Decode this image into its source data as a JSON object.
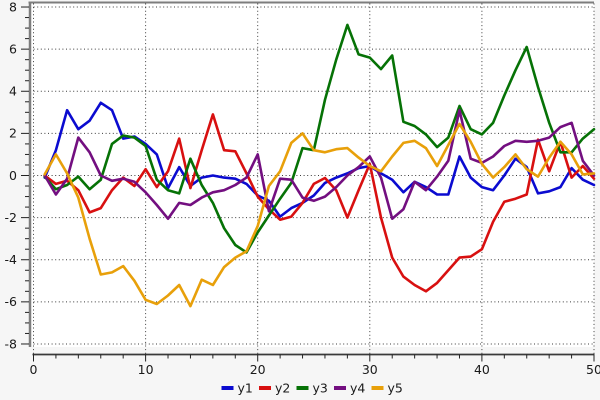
{
  "chart_data": {
    "type": "line",
    "title": "",
    "xlabel": "",
    "ylabel": "",
    "background": "#f6f6f6",
    "plot_background": "#ffffff",
    "grid": "dotted-on-major-ticks",
    "grid_color": "#3c3c3c",
    "frame_color": "#7d7d7d",
    "axis_color": "#3a3a3a",
    "tick_label_color": "#1a1a1a",
    "xlim": [
      -0.4,
      50.4
    ],
    "ylim": [
      -8.55,
      8.25
    ],
    "x_major_ticks": [
      0,
      10,
      20,
      30,
      40,
      50
    ],
    "x_minor_step": 2,
    "y_major_ticks": [
      -8,
      -6,
      -4,
      -2,
      0,
      2,
      4,
      6,
      8
    ],
    "y_minor_step": 0.5,
    "x_tick_labels": [
      "0",
      "10",
      "20",
      "30",
      "40",
      "50"
    ],
    "y_tick_labels": [
      "-8",
      "-6",
      "-4",
      "-2",
      "0",
      "2",
      "4",
      "6",
      "8"
    ],
    "legend_position": "bottom-center",
    "x_start": 1,
    "x_step": 1,
    "series": [
      {
        "name": "y1",
        "color": "#0b0bd0",
        "values": [
          -0.1,
          1.2,
          3.1,
          2.2,
          2.6,
          3.45,
          3.1,
          1.75,
          1.85,
          1.5,
          1.0,
          -0.6,
          0.4,
          -0.5,
          -0.1,
          0.0,
          -0.1,
          -0.15,
          -0.4,
          -0.95,
          -1.2,
          -1.95,
          -1.55,
          -1.3,
          -0.95,
          -0.35,
          -0.1,
          0.1,
          0.35,
          0.45,
          0.1,
          -0.2,
          -0.8,
          -0.3,
          -0.55,
          -0.9,
          -0.9,
          0.9,
          -0.1,
          -0.55,
          -0.7,
          0.0,
          0.8,
          0.4,
          -0.85,
          -0.75,
          -0.55,
          0.35,
          -0.2,
          -0.45
        ]
      },
      {
        "name": "y2",
        "color": "#d81010",
        "values": [
          0.0,
          -0.4,
          -0.25,
          -0.7,
          -1.75,
          -1.55,
          -0.7,
          -0.1,
          -0.5,
          0.3,
          -0.55,
          0.2,
          1.75,
          -0.6,
          1.2,
          2.9,
          1.2,
          1.15,
          0.1,
          -1.0,
          -1.6,
          -2.1,
          -1.95,
          -1.3,
          -0.4,
          -0.12,
          -0.7,
          -2.0,
          -0.7,
          0.55,
          -2.0,
          -3.9,
          -4.8,
          -5.2,
          -5.5,
          -5.1,
          -4.5,
          -3.9,
          -3.85,
          -3.5,
          -2.2,
          -1.25,
          -1.1,
          -0.9,
          1.7,
          0.2,
          1.6,
          -0.1,
          0.45,
          -0.15
        ]
      },
      {
        "name": "y3",
        "color": "#067206",
        "values": [
          -0.05,
          -0.65,
          -0.45,
          -0.05,
          -0.65,
          -0.2,
          1.5,
          1.9,
          1.8,
          1.4,
          -0.2,
          -0.7,
          -0.85,
          0.8,
          -0.45,
          -1.3,
          -2.5,
          -3.3,
          -3.65,
          -2.7,
          -1.9,
          -1.1,
          -0.35,
          1.3,
          1.2,
          3.6,
          5.5,
          7.15,
          5.75,
          5.6,
          5.05,
          5.7,
          2.55,
          2.35,
          1.95,
          1.35,
          1.8,
          3.3,
          2.2,
          1.95,
          2.5,
          3.8,
          5.0,
          6.1,
          4.2,
          2.5,
          1.1,
          1.1,
          1.75,
          2.2
        ]
      },
      {
        "name": "y4",
        "color": "#730f80",
        "values": [
          0.0,
          -0.9,
          -0.15,
          1.8,
          1.1,
          0.0,
          -0.25,
          -0.15,
          -0.3,
          -0.8,
          -1.4,
          -2.05,
          -1.3,
          -1.4,
          -1.05,
          -0.8,
          -0.7,
          -0.45,
          -0.1,
          1.0,
          -1.7,
          -0.15,
          -0.2,
          -1.05,
          -1.2,
          -1.0,
          -0.55,
          0.0,
          0.4,
          0.9,
          -0.1,
          -2.05,
          -1.6,
          -0.3,
          -0.7,
          -0.05,
          0.7,
          3.1,
          0.8,
          0.6,
          0.9,
          1.4,
          1.65,
          1.6,
          1.65,
          1.8,
          2.3,
          2.5,
          0.7,
          0.0
        ]
      },
      {
        "name": "y5",
        "color": "#e8a00a",
        "values": [
          0.05,
          1.0,
          0.1,
          -1.05,
          -3.0,
          -4.7,
          -4.6,
          -4.3,
          -5.0,
          -5.9,
          -6.1,
          -5.7,
          -5.2,
          -6.2,
          -4.95,
          -5.2,
          -4.35,
          -3.9,
          -3.6,
          -2.4,
          -0.5,
          0.2,
          1.55,
          2.0,
          1.2,
          1.1,
          1.25,
          1.3,
          0.85,
          0.45,
          0.2,
          0.9,
          1.55,
          1.65,
          1.3,
          0.45,
          1.45,
          2.45,
          1.6,
          0.55,
          -0.1,
          0.4,
          1.0,
          0.3,
          -0.05,
          0.85,
          1.6,
          1.0,
          0.05,
          0.1
        ]
      }
    ],
    "legend_labels": [
      "y1",
      "y2",
      "y3",
      "y4",
      "y5"
    ]
  }
}
